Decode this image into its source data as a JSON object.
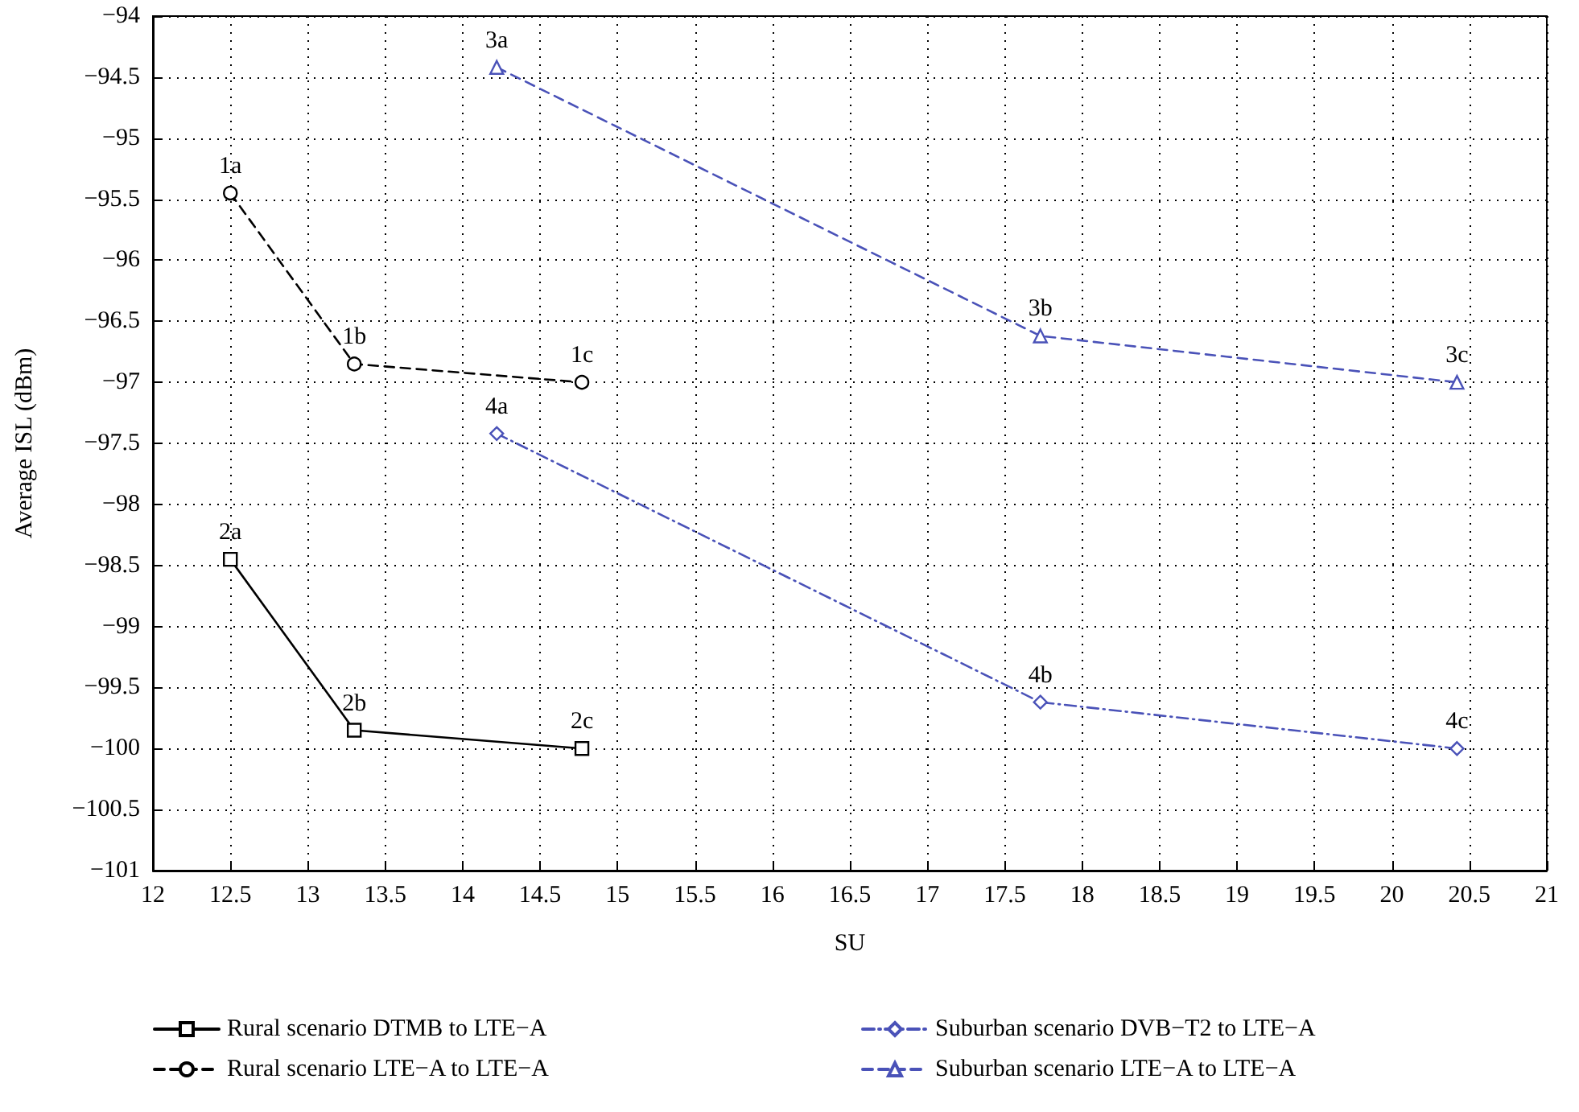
{
  "chart_data": {
    "type": "line",
    "xlabel": "SU",
    "ylabel": "Average ISL (dBm)",
    "xlim": [
      12,
      21
    ],
    "xticks": [
      12,
      12.5,
      13,
      13.5,
      14,
      14.5,
      15,
      15.5,
      16,
      16.5,
      17,
      17.5,
      18,
      18.5,
      19,
      19.5,
      20,
      20.5,
      21
    ],
    "ylim": [
      -101,
      -94
    ],
    "yticks": [
      {
        "value": -101,
        "label": "−101"
      },
      {
        "value": -100.5,
        "label": "−100.5"
      },
      {
        "value": -100,
        "label": "−100"
      },
      {
        "value": -99.5,
        "label": "−99.5"
      },
      {
        "value": -99,
        "label": "−99"
      },
      {
        "value": -98.5,
        "label": "−98.5"
      },
      {
        "value": -98,
        "label": "−98"
      },
      {
        "value": -97.5,
        "label": "−97.5"
      },
      {
        "value": -97,
        "label": "−97"
      },
      {
        "value": -96.5,
        "label": "−96.5"
      },
      {
        "value": -96,
        "label": "−96"
      },
      {
        "value": -95.5,
        "label": "−95.5"
      },
      {
        "value": -95,
        "label": "−95"
      },
      {
        "value": -94.5,
        "label": "−94.5"
      },
      {
        "value": -94,
        "label": "−94"
      }
    ],
    "grid": true,
    "legend": "bottom",
    "series": [
      {
        "name": "Rural scenario DTMB to LTE−A",
        "color": "#000000",
        "marker": "square",
        "line_style": "solid",
        "x": [
          12.5,
          13.3,
          14.77
        ],
        "values": [
          -98.45,
          -99.85,
          -100
        ]
      },
      {
        "name": "Rural scenario LTE−A to LTE−A",
        "color": "#000000",
        "marker": "circle",
        "line_style": "dashed",
        "x": [
          12.5,
          13.3,
          14.77
        ],
        "values": [
          -95.45,
          -96.85,
          -97
        ]
      },
      {
        "name": "Suburban scenario DVB−T2 to LTE−A",
        "color": "#4a52b8",
        "marker": "diamond",
        "line_style": "dashdot",
        "x": [
          14.22,
          17.73,
          20.42
        ],
        "values": [
          -97.42,
          -99.62,
          -100
        ]
      },
      {
        "name": "Suburban scenario LTE−A to LTE−A",
        "color": "#4a52b8",
        "marker": "triangle",
        "line_style": "dashed",
        "x": [
          14.22,
          17.73,
          20.42
        ],
        "values": [
          -94.42,
          -96.62,
          -97
        ]
      }
    ],
    "annotations": [
      {
        "text": "2a",
        "x": 12.5,
        "y": -98.45
      },
      {
        "text": "2b",
        "x": 13.3,
        "y": -99.85
      },
      {
        "text": "2c",
        "x": 14.77,
        "y": -100
      },
      {
        "text": "1a",
        "x": 12.5,
        "y": -95.45
      },
      {
        "text": "1b",
        "x": 13.3,
        "y": -96.85
      },
      {
        "text": "1c",
        "x": 14.77,
        "y": -97
      },
      {
        "text": "4a",
        "x": 14.22,
        "y": -97.42
      },
      {
        "text": "4b",
        "x": 17.73,
        "y": -99.62
      },
      {
        "text": "4c",
        "x": 20.42,
        "y": -100
      },
      {
        "text": "3a",
        "x": 14.22,
        "y": -94.42
      },
      {
        "text": "3b",
        "x": 17.73,
        "y": -96.62
      },
      {
        "text": "3c",
        "x": 20.42,
        "y": -97
      }
    ]
  }
}
